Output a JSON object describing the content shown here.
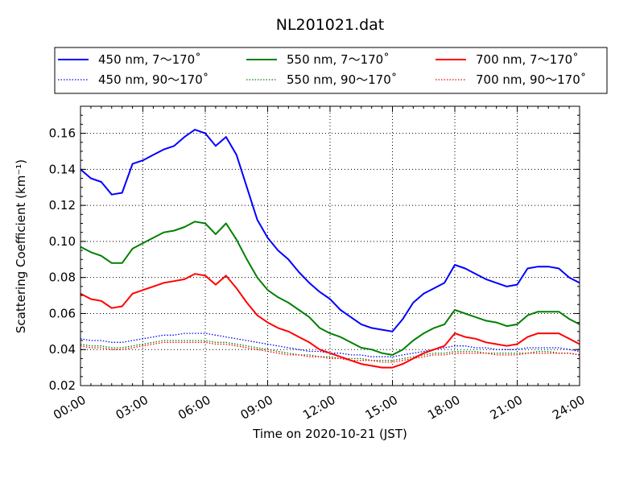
{
  "chart_data": {
    "type": "line",
    "title": "NL201021.dat",
    "xlabel": "Time on 2020-10-21 (JST)",
    "ylabel": "Scattering Coefficient (km⁻¹)",
    "xlim": [
      "00:00",
      "24:00"
    ],
    "ylim": [
      0.02,
      0.175
    ],
    "x_ticks": [
      "00:00",
      "03:00",
      "06:00",
      "09:00",
      "12:00",
      "15:00",
      "18:00",
      "21:00",
      "24:00"
    ],
    "y_ticks": [
      "0.02",
      "0.04",
      "0.06",
      "0.08",
      "0.10",
      "0.12",
      "0.14",
      "0.16"
    ],
    "grid": true,
    "legend_position": "top, above plot",
    "x": [
      "00:00",
      "00:30",
      "01:00",
      "01:30",
      "02:00",
      "02:30",
      "03:00",
      "03:30",
      "04:00",
      "04:30",
      "05:00",
      "05:30",
      "06:00",
      "06:30",
      "07:00",
      "07:30",
      "08:00",
      "08:30",
      "09:00",
      "09:30",
      "10:00",
      "10:30",
      "11:00",
      "11:30",
      "12:00",
      "12:30",
      "13:00",
      "13:30",
      "14:00",
      "14:30",
      "15:00",
      "15:30",
      "16:00",
      "16:30",
      "17:00",
      "17:30",
      "18:00",
      "18:30",
      "19:00",
      "19:30",
      "20:00",
      "20:30",
      "21:00",
      "21:30",
      "22:00",
      "22:30",
      "23:00",
      "23:30",
      "24:00"
    ],
    "series": [
      {
        "name": "450 nm, 7～170˚",
        "color": "#0000ff",
        "style": "solid",
        "values": [
          0.14,
          0.135,
          0.133,
          0.126,
          0.127,
          0.143,
          0.145,
          0.148,
          0.151,
          0.153,
          0.158,
          0.162,
          0.16,
          0.153,
          0.158,
          0.148,
          0.13,
          0.112,
          0.102,
          0.095,
          0.09,
          0.083,
          0.077,
          0.072,
          0.068,
          0.062,
          0.058,
          0.054,
          0.052,
          0.051,
          0.05,
          0.057,
          0.066,
          0.071,
          0.074,
          0.077,
          0.087,
          0.085,
          0.082,
          0.079,
          0.077,
          0.075,
          0.076,
          0.085,
          0.086,
          0.086,
          0.085,
          0.08,
          0.077
        ]
      },
      {
        "name": "450 nm, 90～170˚",
        "color": "#0000ff",
        "style": "dotted",
        "values": [
          0.046,
          0.045,
          0.045,
          0.044,
          0.044,
          0.045,
          0.046,
          0.047,
          0.048,
          0.048,
          0.049,
          0.049,
          0.049,
          0.048,
          0.047,
          0.046,
          0.045,
          0.044,
          0.043,
          0.042,
          0.041,
          0.04,
          0.039,
          0.039,
          0.038,
          0.038,
          0.037,
          0.037,
          0.036,
          0.036,
          0.036,
          0.037,
          0.038,
          0.039,
          0.04,
          0.041,
          0.042,
          0.042,
          0.041,
          0.041,
          0.04,
          0.04,
          0.04,
          0.041,
          0.041,
          0.041,
          0.041,
          0.04,
          0.039
        ]
      },
      {
        "name": "550 nm, 7～170˚",
        "color": "#008000",
        "style": "solid",
        "values": [
          0.097,
          0.094,
          0.092,
          0.088,
          0.088,
          0.096,
          0.099,
          0.102,
          0.105,
          0.106,
          0.108,
          0.111,
          0.11,
          0.104,
          0.11,
          0.101,
          0.09,
          0.08,
          0.073,
          0.069,
          0.066,
          0.062,
          0.058,
          0.052,
          0.049,
          0.047,
          0.044,
          0.041,
          0.04,
          0.038,
          0.037,
          0.04,
          0.045,
          0.049,
          0.052,
          0.054,
          0.062,
          0.06,
          0.058,
          0.056,
          0.055,
          0.053,
          0.054,
          0.059,
          0.061,
          0.061,
          0.061,
          0.057,
          0.054
        ]
      },
      {
        "name": "550 nm, 90～170˚",
        "color": "#008000",
        "style": "dotted",
        "values": [
          0.043,
          0.042,
          0.042,
          0.041,
          0.041,
          0.042,
          0.043,
          0.044,
          0.045,
          0.045,
          0.045,
          0.045,
          0.045,
          0.044,
          0.044,
          0.043,
          0.042,
          0.041,
          0.04,
          0.039,
          0.038,
          0.037,
          0.037,
          0.036,
          0.036,
          0.035,
          0.035,
          0.035,
          0.034,
          0.034,
          0.034,
          0.035,
          0.036,
          0.037,
          0.038,
          0.038,
          0.039,
          0.039,
          0.039,
          0.038,
          0.038,
          0.038,
          0.038,
          0.038,
          0.039,
          0.039,
          0.038,
          0.038,
          0.037
        ]
      },
      {
        "name": "700 nm, 7～170˚",
        "color": "#ff0000",
        "style": "solid",
        "values": [
          0.071,
          0.068,
          0.067,
          0.063,
          0.064,
          0.071,
          0.073,
          0.075,
          0.077,
          0.078,
          0.079,
          0.082,
          0.081,
          0.076,
          0.081,
          0.074,
          0.066,
          0.059,
          0.055,
          0.052,
          0.05,
          0.047,
          0.044,
          0.04,
          0.038,
          0.036,
          0.034,
          0.032,
          0.031,
          0.03,
          0.03,
          0.032,
          0.035,
          0.038,
          0.04,
          0.042,
          0.049,
          0.047,
          0.046,
          0.044,
          0.043,
          0.042,
          0.043,
          0.047,
          0.049,
          0.049,
          0.049,
          0.046,
          0.043
        ]
      },
      {
        "name": "700 nm, 90～170˚",
        "color": "#ff0000",
        "style": "dotted",
        "values": [
          0.042,
          0.041,
          0.041,
          0.04,
          0.04,
          0.041,
          0.042,
          0.043,
          0.044,
          0.044,
          0.044,
          0.044,
          0.044,
          0.043,
          0.043,
          0.042,
          0.041,
          0.04,
          0.039,
          0.038,
          0.037,
          0.037,
          0.036,
          0.036,
          0.035,
          0.035,
          0.034,
          0.034,
          0.034,
          0.033,
          0.033,
          0.034,
          0.035,
          0.036,
          0.037,
          0.037,
          0.038,
          0.038,
          0.038,
          0.038,
          0.037,
          0.037,
          0.037,
          0.038,
          0.038,
          0.038,
          0.038,
          0.038,
          0.037
        ]
      }
    ]
  }
}
